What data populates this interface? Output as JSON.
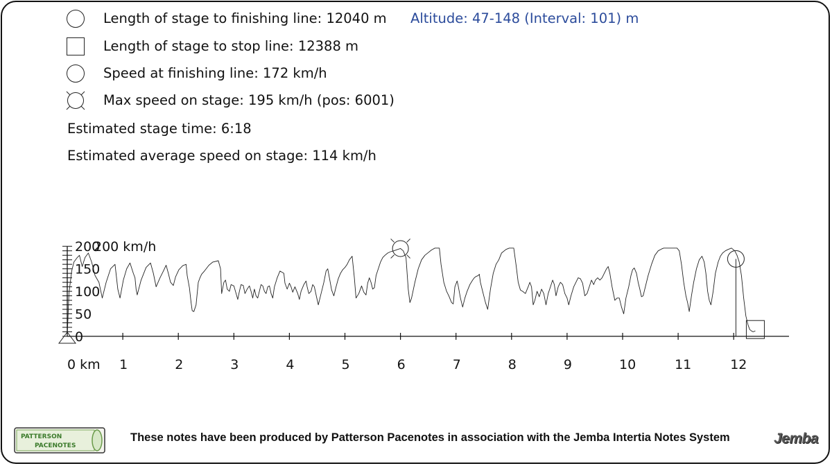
{
  "info": {
    "finish_length": "Length of stage to finishing line: 12040 m",
    "altitude": "Altitude: 47-148 (Interval: 101) m",
    "stop_length": "Length of stage to stop line: 12388 m",
    "finish_speed": "Speed at finishing line: 172 km/h",
    "max_speed": "Max speed on stage: 195 km/h (pos: 6001)",
    "stage_time": "Estimated stage time: 6:18",
    "avg_speed": "Estimated average speed on stage: 114 km/h"
  },
  "icons": {
    "finish_line": "circle-icon",
    "stop_line": "square-icon",
    "finish_speed": "circle-icon",
    "max_speed": "crossed-circle-icon"
  },
  "footer": {
    "text": "These notes have been produced by Patterson Pacenotes in association with the Jemba Intertia Notes System",
    "logo_left_line1": "PATTERSON",
    "logo_left_line2": "PACENOTES",
    "logo_right": "Jemba"
  },
  "chart_data": {
    "type": "line",
    "title": "",
    "xlabel": "",
    "ylabel": "",
    "x_unit_label": "0 km",
    "y_unit_label": "200 km/h",
    "xlim": [
      0,
      12.7
    ],
    "ylim": [
      0,
      200
    ],
    "x_ticks": [
      0,
      1,
      2,
      3,
      4,
      5,
      6,
      7,
      8,
      9,
      10,
      11,
      12
    ],
    "x_tick_labels": [
      "0 km",
      "1",
      "2",
      "3",
      "4",
      "5",
      "6",
      "7",
      "8",
      "9",
      "10",
      "11",
      "12"
    ],
    "y_ticks": [
      0,
      50,
      100,
      150,
      200
    ],
    "y_tick_labels": [
      "0",
      "50",
      "100",
      "150",
      "200"
    ],
    "grid": false,
    "markers": {
      "start": {
        "x": 0
      },
      "max_speed": {
        "x": 6.0,
        "y": 195
      },
      "finish_line": {
        "x": 12.04,
        "y": 172
      },
      "stop_line": {
        "x": 12.39,
        "y": 12
      }
    },
    "series": [
      {
        "values": [
          [
            0.0,
            0
          ],
          [
            0.03,
            95
          ],
          [
            0.08,
            145
          ],
          [
            0.12,
            165
          ],
          [
            0.18,
            175
          ],
          [
            0.22,
            180
          ],
          [
            0.27,
            155
          ],
          [
            0.32,
            175
          ],
          [
            0.38,
            185
          ],
          [
            0.44,
            165
          ],
          [
            0.5,
            135
          ],
          [
            0.57,
            120
          ],
          [
            0.63,
            85
          ],
          [
            0.7,
            120
          ],
          [
            0.78,
            150
          ],
          [
            0.86,
            160
          ],
          [
            0.91,
            105
          ],
          [
            0.95,
            85
          ],
          [
            1.01,
            125
          ],
          [
            1.07,
            150
          ],
          [
            1.13,
            163
          ],
          [
            1.19,
            140
          ],
          [
            1.22,
            130
          ],
          [
            1.24,
            105
          ],
          [
            1.26,
            92
          ],
          [
            1.33,
            125
          ],
          [
            1.42,
            153
          ],
          [
            1.5,
            163
          ],
          [
            1.55,
            140
          ],
          [
            1.6,
            110
          ],
          [
            1.67,
            130
          ],
          [
            1.73,
            145
          ],
          [
            1.78,
            158
          ],
          [
            1.82,
            140
          ],
          [
            1.86,
            120
          ],
          [
            1.91,
            113
          ],
          [
            1.95,
            132
          ],
          [
            2.01,
            148
          ],
          [
            2.08,
            157
          ],
          [
            2.14,
            160
          ],
          [
            2.16,
            135
          ],
          [
            2.2,
            108
          ],
          [
            2.23,
            75
          ],
          [
            2.25,
            57
          ],
          [
            2.28,
            55
          ],
          [
            2.32,
            70
          ],
          [
            2.36,
            120
          ],
          [
            2.39,
            130
          ],
          [
            2.42,
            138
          ],
          [
            2.47,
            145
          ],
          [
            2.55,
            158
          ],
          [
            2.62,
            165
          ],
          [
            2.72,
            168
          ],
          [
            2.76,
            150
          ],
          [
            2.78,
            95
          ],
          [
            2.82,
            120
          ],
          [
            2.85,
            125
          ],
          [
            2.88,
            105
          ],
          [
            2.92,
            100
          ],
          [
            2.95,
            115
          ],
          [
            3.0,
            112
          ],
          [
            3.04,
            95
          ],
          [
            3.07,
            82
          ],
          [
            3.1,
            100
          ],
          [
            3.13,
            115
          ],
          [
            3.17,
            113
          ],
          [
            3.2,
            95
          ],
          [
            3.24,
            105
          ],
          [
            3.28,
            112
          ],
          [
            3.31,
            100
          ],
          [
            3.34,
            85
          ],
          [
            3.37,
            105
          ],
          [
            3.4,
            90
          ],
          [
            3.43,
            85
          ],
          [
            3.46,
            100
          ],
          [
            3.49,
            115
          ],
          [
            3.52,
            112
          ],
          [
            3.55,
            100
          ],
          [
            3.58,
            95
          ],
          [
            3.61,
            110
          ],
          [
            3.64,
            112
          ],
          [
            3.67,
            95
          ],
          [
            3.7,
            85
          ],
          [
            3.73,
            110
          ],
          [
            3.78,
            130
          ],
          [
            3.83,
            145
          ],
          [
            3.9,
            140
          ],
          [
            3.92,
            118
          ],
          [
            3.96,
            105
          ],
          [
            4.0,
            118
          ],
          [
            4.03,
            110
          ],
          [
            4.06,
            98
          ],
          [
            4.1,
            110
          ],
          [
            4.15,
            95
          ],
          [
            4.18,
            82
          ],
          [
            4.21,
            100
          ],
          [
            4.26,
            115
          ],
          [
            4.3,
            123
          ],
          [
            4.32,
            110
          ],
          [
            4.35,
            95
          ],
          [
            4.39,
            100
          ],
          [
            4.42,
            115
          ],
          [
            4.45,
            110
          ],
          [
            4.49,
            87
          ],
          [
            4.52,
            70
          ],
          [
            4.57,
            95
          ],
          [
            4.62,
            120
          ],
          [
            4.66,
            145
          ],
          [
            4.69,
            150
          ],
          [
            4.72,
            130
          ],
          [
            4.76,
            103
          ],
          [
            4.8,
            90
          ],
          [
            4.84,
            110
          ],
          [
            4.88,
            128
          ],
          [
            4.92,
            140
          ],
          [
            4.96,
            148
          ],
          [
            5.0,
            153
          ],
          [
            5.04,
            160
          ],
          [
            5.08,
            170
          ],
          [
            5.13,
            178
          ],
          [
            5.17,
            130
          ],
          [
            5.2,
            85
          ],
          [
            5.25,
            95
          ],
          [
            5.3,
            112
          ],
          [
            5.34,
            98
          ],
          [
            5.38,
            92
          ],
          [
            5.41,
            118
          ],
          [
            5.44,
            130
          ],
          [
            5.47,
            120
          ],
          [
            5.5,
            105
          ],
          [
            5.53,
            108
          ],
          [
            5.56,
            135
          ],
          [
            5.6,
            150
          ],
          [
            5.64,
            165
          ],
          [
            5.68,
            175
          ],
          [
            5.72,
            180
          ],
          [
            5.77,
            185
          ],
          [
            5.82,
            188
          ],
          [
            5.88,
            190
          ],
          [
            5.95,
            193
          ],
          [
            6.0,
            195
          ],
          [
            6.05,
            190
          ],
          [
            6.1,
            175
          ],
          [
            6.14,
            105
          ],
          [
            6.17,
            75
          ],
          [
            6.2,
            85
          ],
          [
            6.26,
            120
          ],
          [
            6.32,
            150
          ],
          [
            6.38,
            170
          ],
          [
            6.44,
            180
          ],
          [
            6.5,
            186
          ],
          [
            6.56,
            192
          ],
          [
            6.62,
            196
          ],
          [
            6.7,
            196
          ],
          [
            6.73,
            160
          ],
          [
            6.78,
            120
          ],
          [
            6.83,
            100
          ],
          [
            6.87,
            90
          ],
          [
            6.92,
            75
          ],
          [
            6.95,
            72
          ],
          [
            6.98,
            110
          ],
          [
            7.02,
            123
          ],
          [
            7.04,
            112
          ],
          [
            7.08,
            85
          ],
          [
            7.12,
            65
          ],
          [
            7.16,
            85
          ],
          [
            7.2,
            100
          ],
          [
            7.25,
            115
          ],
          [
            7.3,
            125
          ],
          [
            7.33,
            130
          ],
          [
            7.36,
            133
          ],
          [
            7.4,
            135
          ],
          [
            7.42,
            138
          ],
          [
            7.44,
            120
          ],
          [
            7.48,
            100
          ],
          [
            7.53,
            75
          ],
          [
            7.57,
            60
          ],
          [
            7.62,
            105
          ],
          [
            7.67,
            140
          ],
          [
            7.72,
            160
          ],
          [
            7.77,
            170
          ],
          [
            7.82,
            185
          ],
          [
            7.9,
            193
          ],
          [
            7.96,
            196
          ],
          [
            8.0,
            196
          ],
          [
            8.04,
            196
          ],
          [
            8.08,
            160
          ],
          [
            8.12,
            120
          ],
          [
            8.16,
            103
          ],
          [
            8.2,
            100
          ],
          [
            8.25,
            95
          ],
          [
            8.3,
            110
          ],
          [
            8.33,
            120
          ],
          [
            8.36,
            110
          ],
          [
            8.39,
            70
          ],
          [
            8.42,
            80
          ],
          [
            8.46,
            100
          ],
          [
            8.5,
            88
          ],
          [
            8.54,
            105
          ],
          [
            8.58,
            95
          ],
          [
            8.62,
            70
          ],
          [
            8.66,
            95
          ],
          [
            8.7,
            110
          ],
          [
            8.74,
            125
          ],
          [
            8.77,
            115
          ],
          [
            8.8,
            90
          ],
          [
            8.84,
            110
          ],
          [
            8.88,
            120
          ],
          [
            8.92,
            115
          ],
          [
            8.96,
            95
          ],
          [
            9.0,
            85
          ],
          [
            9.03,
            70
          ],
          [
            9.07,
            90
          ],
          [
            9.12,
            110
          ],
          [
            9.16,
            120
          ],
          [
            9.2,
            130
          ],
          [
            9.24,
            128
          ],
          [
            9.28,
            118
          ],
          [
            9.32,
            90
          ],
          [
            9.36,
            95
          ],
          [
            9.4,
            110
          ],
          [
            9.44,
            125
          ],
          [
            9.48,
            115
          ],
          [
            9.51,
            125
          ],
          [
            9.55,
            130
          ],
          [
            9.59,
            125
          ],
          [
            9.63,
            130
          ],
          [
            9.67,
            140
          ],
          [
            9.71,
            150
          ],
          [
            9.74,
            155
          ],
          [
            9.77,
            140
          ],
          [
            9.81,
            110
          ],
          [
            9.86,
            80
          ],
          [
            9.9,
            85
          ],
          [
            9.94,
            85
          ],
          [
            9.98,
            65
          ],
          [
            10.02,
            50
          ],
          [
            10.06,
            85
          ],
          [
            10.11,
            110
          ],
          [
            10.15,
            135
          ],
          [
            10.18,
            148
          ],
          [
            10.21,
            152
          ],
          [
            10.25,
            140
          ],
          [
            10.28,
            120
          ],
          [
            10.31,
            105
          ],
          [
            10.34,
            88
          ],
          [
            10.37,
            90
          ],
          [
            10.41,
            110
          ],
          [
            10.46,
            135
          ],
          [
            10.52,
            160
          ],
          [
            10.58,
            180
          ],
          [
            10.64,
            190
          ],
          [
            10.7,
            194
          ],
          [
            10.74,
            196
          ],
          [
            10.8,
            196
          ],
          [
            10.9,
            196
          ],
          [
            10.98,
            196
          ],
          [
            11.02,
            190
          ],
          [
            11.06,
            160
          ],
          [
            11.1,
            120
          ],
          [
            11.14,
            90
          ],
          [
            11.17,
            75
          ],
          [
            11.2,
            55
          ],
          [
            11.24,
            90
          ],
          [
            11.28,
            120
          ],
          [
            11.33,
            150
          ],
          [
            11.38,
            170
          ],
          [
            11.43,
            178
          ],
          [
            11.47,
            165
          ],
          [
            11.5,
            140
          ],
          [
            11.53,
            100
          ],
          [
            11.56,
            80
          ],
          [
            11.59,
            70
          ],
          [
            11.63,
            100
          ],
          [
            11.67,
            140
          ],
          [
            11.72,
            165
          ],
          [
            11.76,
            178
          ],
          [
            11.8,
            185
          ],
          [
            11.85,
            190
          ],
          [
            11.9,
            193
          ],
          [
            11.96,
            196
          ],
          [
            12.02,
            190
          ],
          [
            12.06,
            180
          ],
          [
            12.1,
            165
          ],
          [
            12.14,
            135
          ],
          [
            12.18,
            85
          ],
          [
            12.22,
            45
          ],
          [
            12.26,
            25
          ],
          [
            12.29,
            15
          ],
          [
            12.32,
            12
          ],
          [
            12.35,
            10
          ],
          [
            12.39,
            12
          ]
        ]
      }
    ]
  }
}
